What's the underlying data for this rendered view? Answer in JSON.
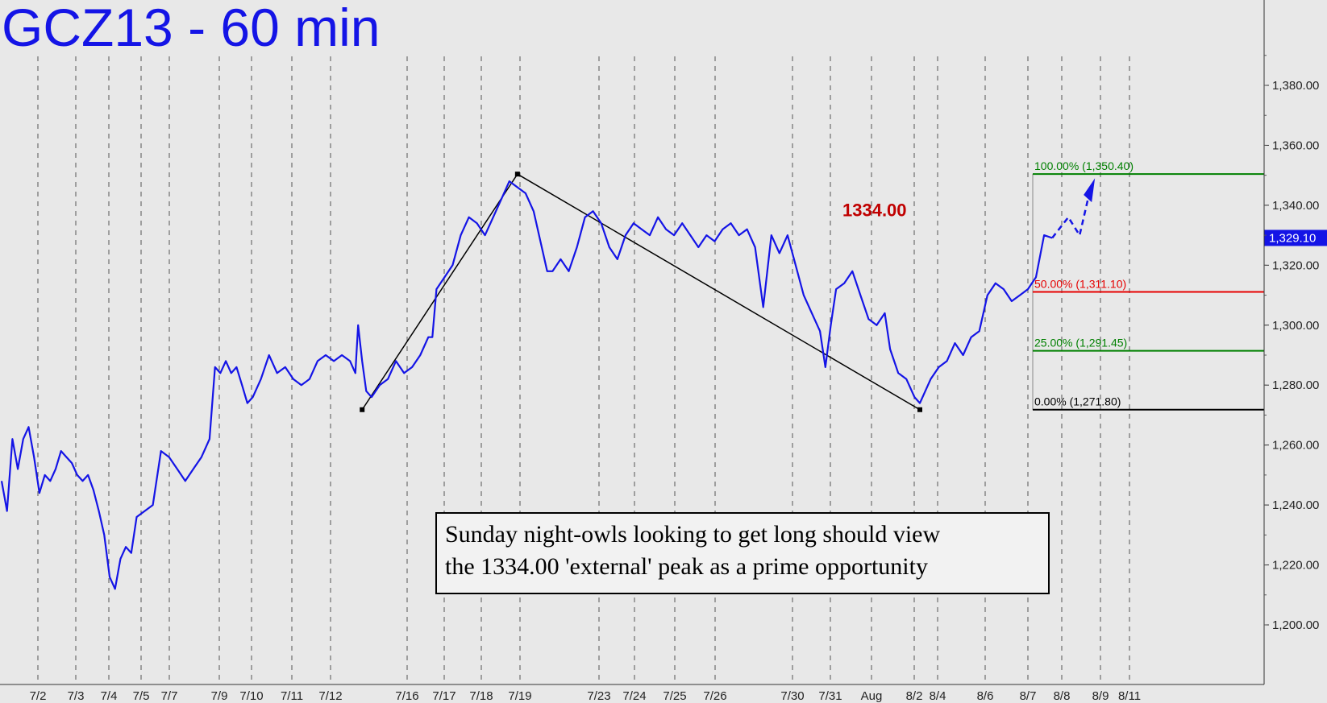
{
  "chart_data": {
    "type": "line",
    "title": "GCZ13 - 60 min",
    "ylim": [
      1190,
      1400
    ],
    "y_ticks": [
      "1,380.00",
      "1,360.00",
      "1,340.00",
      "1,320.00",
      "1,300.00",
      "1,280.00",
      "1,260.00",
      "1,240.00",
      "1,220.00",
      "1,200.00"
    ],
    "y_tick_values": [
      1380,
      1360,
      1340,
      1320,
      1300,
      1280,
      1260,
      1240,
      1220,
      1200
    ],
    "x_ticks": [
      "7/2",
      "7/3",
      "7/4",
      "7/5",
      "7/7",
      "7/9",
      "7/10",
      "7/11",
      "7/12",
      "7/16",
      "7/17",
      "7/18",
      "7/19",
      "7/23",
      "7/24",
      "7/25",
      "7/26",
      "7/30",
      "7/31",
      "Aug",
      "8/2",
      "8/4",
      "8/6",
      "8/7",
      "8/8",
      "8/9",
      "8/11"
    ],
    "last_price_label": "1,329.10",
    "last_price": 1329.1,
    "series": [
      {
        "color": "#1414e6",
        "points": [
          [
            0,
            1248
          ],
          [
            0.2,
            1238
          ],
          [
            0.4,
            1262
          ],
          [
            0.6,
            1252
          ],
          [
            0.8,
            1262
          ],
          [
            1,
            1266
          ],
          [
            1.2,
            1256
          ],
          [
            1.4,
            1244
          ],
          [
            1.6,
            1250
          ],
          [
            1.8,
            1248
          ],
          [
            2,
            1252
          ],
          [
            2.2,
            1258
          ],
          [
            2.4,
            1256
          ],
          [
            2.6,
            1254
          ],
          [
            2.8,
            1250
          ],
          [
            3,
            1248
          ],
          [
            3.2,
            1250
          ],
          [
            3.4,
            1245
          ],
          [
            3.6,
            1238
          ],
          [
            3.8,
            1230
          ],
          [
            4,
            1216
          ],
          [
            4.2,
            1212
          ],
          [
            4.4,
            1222
          ],
          [
            4.6,
            1226
          ],
          [
            4.8,
            1224
          ],
          [
            5,
            1236
          ],
          [
            5.3,
            1238
          ],
          [
            5.6,
            1240
          ],
          [
            5.9,
            1258
          ],
          [
            6.2,
            1256
          ],
          [
            6.5,
            1252
          ],
          [
            6.8,
            1248
          ],
          [
            7.1,
            1252
          ],
          [
            7.4,
            1256
          ],
          [
            7.7,
            1262
          ],
          [
            7.9,
            1286
          ],
          [
            8.1,
            1284
          ],
          [
            8.3,
            1288
          ],
          [
            8.5,
            1284
          ],
          [
            8.7,
            1286
          ],
          [
            8.9,
            1280
          ],
          [
            9.1,
            1274
          ],
          [
            9.3,
            1276
          ],
          [
            9.6,
            1282
          ],
          [
            9.9,
            1290
          ],
          [
            10.2,
            1284
          ],
          [
            10.5,
            1286
          ],
          [
            10.8,
            1282
          ],
          [
            11.1,
            1280
          ],
          [
            11.4,
            1282
          ],
          [
            11.7,
            1288
          ],
          [
            12,
            1290
          ],
          [
            12.3,
            1288
          ],
          [
            12.6,
            1290
          ],
          [
            12.9,
            1288
          ],
          [
            13.1,
            1284
          ],
          [
            13.2,
            1300
          ],
          [
            13.35,
            1288
          ],
          [
            13.5,
            1278
          ],
          [
            13.7,
            1276
          ],
          [
            14,
            1280
          ],
          [
            14.3,
            1282
          ],
          [
            14.6,
            1288
          ],
          [
            14.9,
            1284
          ],
          [
            15.2,
            1286
          ],
          [
            15.5,
            1290
          ],
          [
            15.8,
            1296
          ],
          [
            15.95,
            1296
          ],
          [
            16.1,
            1312
          ],
          [
            16.4,
            1316
          ],
          [
            16.7,
            1320
          ],
          [
            17,
            1330
          ],
          [
            17.3,
            1336
          ],
          [
            17.6,
            1334
          ],
          [
            17.9,
            1330
          ],
          [
            18.2,
            1336
          ],
          [
            18.5,
            1342
          ],
          [
            18.8,
            1348
          ],
          [
            19.1,
            1346
          ],
          [
            19.4,
            1344
          ],
          [
            19.7,
            1338
          ],
          [
            20,
            1326
          ],
          [
            20.2,
            1318
          ],
          [
            20.4,
            1318
          ],
          [
            20.7,
            1322
          ],
          [
            21,
            1318
          ],
          [
            21.3,
            1326
          ],
          [
            21.6,
            1336
          ],
          [
            21.9,
            1338
          ],
          [
            22.2,
            1334
          ],
          [
            22.5,
            1326
          ],
          [
            22.8,
            1322
          ],
          [
            23.1,
            1330
          ],
          [
            23.4,
            1334
          ],
          [
            23.7,
            1332
          ],
          [
            24,
            1330
          ],
          [
            24.3,
            1336
          ],
          [
            24.6,
            1332
          ],
          [
            24.9,
            1330
          ],
          [
            25.2,
            1334
          ],
          [
            25.5,
            1330
          ],
          [
            25.8,
            1326
          ],
          [
            26.1,
            1330
          ],
          [
            26.4,
            1328
          ],
          [
            26.7,
            1332
          ],
          [
            27,
            1334
          ],
          [
            27.3,
            1330
          ],
          [
            27.6,
            1332
          ],
          [
            27.9,
            1326
          ],
          [
            28.2,
            1306
          ],
          [
            28.5,
            1330
          ],
          [
            28.8,
            1324
          ],
          [
            29.1,
            1330
          ],
          [
            29.4,
            1320
          ],
          [
            29.7,
            1310
          ],
          [
            30,
            1304
          ],
          [
            30.3,
            1298
          ],
          [
            30.5,
            1286
          ],
          [
            30.7,
            1300
          ],
          [
            30.9,
            1312
          ],
          [
            31.2,
            1314
          ],
          [
            31.5,
            1318
          ],
          [
            31.8,
            1310
          ],
          [
            32.1,
            1302
          ],
          [
            32.4,
            1300
          ],
          [
            32.7,
            1304
          ],
          [
            32.9,
            1292
          ],
          [
            33.2,
            1284
          ],
          [
            33.5,
            1282
          ],
          [
            33.8,
            1276
          ],
          [
            34,
            1274
          ],
          [
            34.2,
            1278
          ],
          [
            34.4,
            1282
          ],
          [
            34.7,
            1286
          ],
          [
            35,
            1288
          ],
          [
            35.3,
            1294
          ],
          [
            35.6,
            1290
          ],
          [
            35.9,
            1296
          ],
          [
            36.2,
            1298
          ],
          [
            36.5,
            1310
          ],
          [
            36.8,
            1314
          ],
          [
            37.1,
            1312
          ],
          [
            37.4,
            1308
          ],
          [
            37.7,
            1310
          ],
          [
            38,
            1312
          ],
          [
            38.3,
            1316
          ],
          [
            38.6,
            1330
          ],
          [
            38.9,
            1329.1
          ]
        ]
      }
    ],
    "fib_levels": [
      {
        "label": "100.00% (1,350.40)",
        "value": 1350.4,
        "color": "#008000"
      },
      {
        "label": "50.00% (1,311.10)",
        "value": 1311.1,
        "color": "#e60000"
      },
      {
        "label": "25.00% (1,291.45)",
        "value": 1291.45,
        "color": "#008000"
      },
      {
        "label": "0.00% (1,271.80)",
        "value": 1271.8,
        "color": "#000000"
      }
    ],
    "annotation_peak": {
      "label": "1334.00",
      "color": "#c00000"
    },
    "grid": true
  },
  "comment": {
    "line1": "Sunday night-owls looking to get long should view",
    "line2": "the 1334.00 'external' peak as a prime opportunity"
  }
}
